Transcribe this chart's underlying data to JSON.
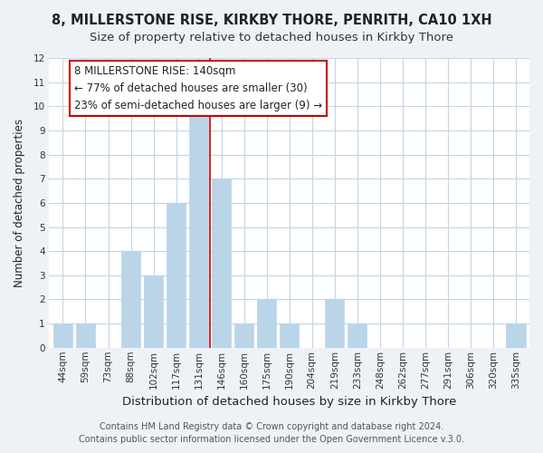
{
  "title": "8, MILLERSTONE RISE, KIRKBY THORE, PENRITH, CA10 1XH",
  "subtitle": "Size of property relative to detached houses in Kirkby Thore",
  "xlabel": "Distribution of detached houses by size in Kirkby Thore",
  "ylabel": "Number of detached properties",
  "bar_labels": [
    "44sqm",
    "59sqm",
    "73sqm",
    "88sqm",
    "102sqm",
    "117sqm",
    "131sqm",
    "146sqm",
    "160sqm",
    "175sqm",
    "190sqm",
    "204sqm",
    "219sqm",
    "233sqm",
    "248sqm",
    "262sqm",
    "277sqm",
    "291sqm",
    "306sqm",
    "320sqm",
    "335sqm"
  ],
  "bar_values": [
    1,
    1,
    0,
    4,
    3,
    6,
    10,
    7,
    1,
    2,
    1,
    0,
    2,
    1,
    0,
    0,
    0,
    0,
    0,
    0,
    1
  ],
  "bar_color": "#bad4e8",
  "ylim": [
    0,
    12
  ],
  "yticks": [
    0,
    1,
    2,
    3,
    4,
    5,
    6,
    7,
    8,
    9,
    10,
    11,
    12
  ],
  "annotation_title": "8 MILLERSTONE RISE: 140sqm",
  "annotation_line1": "← 77% of detached houses are smaller (30)",
  "annotation_line2": "23% of semi-detached houses are larger (9) →",
  "footer1": "Contains HM Land Registry data © Crown copyright and database right 2024.",
  "footer2": "Contains public sector information licensed under the Open Government Licence v.3.0.",
  "background_color": "#eef2f7",
  "plot_background": "#ffffff",
  "grid_color": "#c5d5e5",
  "vertical_line_x": 6.5,
  "vertical_line_color": "#cc0000",
  "annotation_box_edge_color": "#cc0000",
  "title_fontsize": 10.5,
  "subtitle_fontsize": 9.5,
  "xlabel_fontsize": 9.5,
  "ylabel_fontsize": 8.5,
  "tick_fontsize": 7.5,
  "annotation_fontsize": 8.5,
  "footer_fontsize": 7
}
